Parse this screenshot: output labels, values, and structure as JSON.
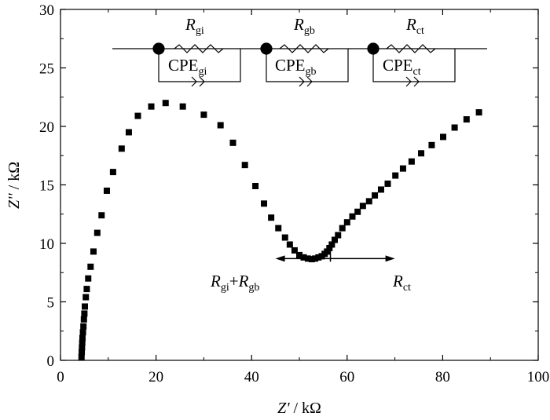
{
  "chart_data": {
    "type": "scatter",
    "xlabel": {
      "symbol": "Z'",
      "unit": " / kΩ"
    },
    "ylabel": {
      "symbol": "Z''",
      "unit": " / kΩ"
    },
    "xlim": [
      0,
      100
    ],
    "ylim": [
      0,
      30
    ],
    "x_ticks": [
      "0",
      "20",
      "40",
      "60",
      "80",
      "100"
    ],
    "y_ticks": [
      "0",
      "5",
      "10",
      "15",
      "20",
      "25",
      "30"
    ],
    "grid": false,
    "marker_color": "#000000",
    "series": [
      {
        "x": [
          4.4,
          4.45,
          4.5,
          4.55,
          4.6,
          4.7,
          4.8,
          4.9,
          5.0,
          5.1,
          5.3,
          5.5,
          5.8,
          6.3,
          6.9,
          7.7,
          8.6,
          9.7,
          11.0,
          12.8,
          14.3,
          16.2,
          19.0,
          22.0,
          25.6,
          30.0,
          33.5,
          36.1,
          38.6,
          40.8,
          42.6,
          44.1,
          45.6,
          47.0,
          48.0,
          49.0,
          50.0,
          50.9,
          51.8,
          52.6,
          53.3,
          54.0,
          54.7,
          55.3,
          55.8,
          56.3,
          56.8,
          57.4,
          58.1,
          59.0,
          60.0,
          61.1,
          62.2,
          63.3,
          64.6,
          65.8,
          67.1,
          68.5,
          70.1,
          71.7,
          73.5,
          75.5,
          77.7,
          80.1,
          82.5,
          85.0,
          87.6
        ],
        "y": [
          0.3,
          0.7,
          1.1,
          1.5,
          1.9,
          2.4,
          2.9,
          3.5,
          4.0,
          4.6,
          5.4,
          6.1,
          7.0,
          8.0,
          9.3,
          10.9,
          12.4,
          14.5,
          16.1,
          18.1,
          19.5,
          20.9,
          21.7,
          22.0,
          21.7,
          21.0,
          20.1,
          18.6,
          16.7,
          14.9,
          13.4,
          12.2,
          11.3,
          10.5,
          9.9,
          9.4,
          9.0,
          8.8,
          8.7,
          8.65,
          8.7,
          8.8,
          8.9,
          9.1,
          9.3,
          9.6,
          9.9,
          10.3,
          10.7,
          11.3,
          11.8,
          12.3,
          12.7,
          13.2,
          13.6,
          14.1,
          14.6,
          15.1,
          15.8,
          16.4,
          17.0,
          17.7,
          18.4,
          19.1,
          19.9,
          20.6,
          21.2
        ]
      }
    ],
    "annotations": {
      "left": {
        "r": "R",
        "sub1": "gi",
        "plus": "+",
        "r2": "R",
        "sub2": "gb"
      },
      "right": {
        "r": "R",
        "sub": "ct"
      },
      "arrow": {
        "x_left": 45,
        "x_right": 70,
        "x_mid": 56.5,
        "y": 8.7
      }
    },
    "circuit": {
      "elements": [
        {
          "r": "R",
          "r_sub": "gi",
          "cpe": "CPE",
          "cpe_sub": "gi"
        },
        {
          "r": "R",
          "r_sub": "gb",
          "cpe": "CPE",
          "cpe_sub": "gb"
        },
        {
          "r": "R",
          "r_sub": "ct",
          "cpe": "CPE",
          "cpe_sub": "ct"
        }
      ]
    }
  }
}
